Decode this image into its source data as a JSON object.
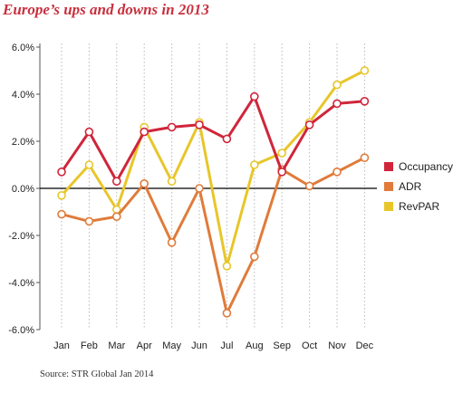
{
  "title": "Europe’s ups and downs in 2013",
  "source": "Source: STR Global Jan 2014",
  "colors": {
    "occupancy": "#d0253a",
    "adr": "#e07b3a",
    "revpar": "#e8c62a",
    "grid": "#b8b8b8",
    "zero": "#000000"
  },
  "chart_data": {
    "type": "line",
    "title": "Europe’s ups and downs in 2013",
    "xlabel": "",
    "ylabel": "",
    "categories": [
      "Jan",
      "Feb",
      "Mar",
      "Apr",
      "May",
      "Jun",
      "Jul",
      "Aug",
      "Sep",
      "Oct",
      "Nov",
      "Dec"
    ],
    "ylim": [
      -6,
      6
    ],
    "yticks": [
      6,
      4,
      2,
      0,
      -2,
      -4,
      -6
    ],
    "ytick_labels": [
      "6.0%",
      "4.0%",
      "2.0%",
      "0.0%",
      "-2.0%",
      "-4.0%",
      "-6.0%"
    ],
    "grid": "vertical dotted",
    "legend": "right",
    "series": [
      {
        "name": "Occupancy",
        "key": "occupancy",
        "values": [
          0.7,
          2.4,
          0.3,
          2.4,
          2.6,
          2.7,
          2.1,
          3.9,
          0.7,
          2.7,
          3.6,
          3.7
        ]
      },
      {
        "name": "ADR",
        "key": "adr",
        "values": [
          -1.1,
          -1.4,
          -1.2,
          0.2,
          -2.3,
          0.0,
          -5.3,
          -2.9,
          0.8,
          0.1,
          0.7,
          1.3
        ]
      },
      {
        "name": "RevPAR",
        "key": "revpar",
        "values": [
          -0.3,
          1.0,
          -0.9,
          2.6,
          0.3,
          2.8,
          -3.3,
          1.0,
          1.5,
          2.8,
          4.4,
          5.0
        ]
      }
    ]
  }
}
